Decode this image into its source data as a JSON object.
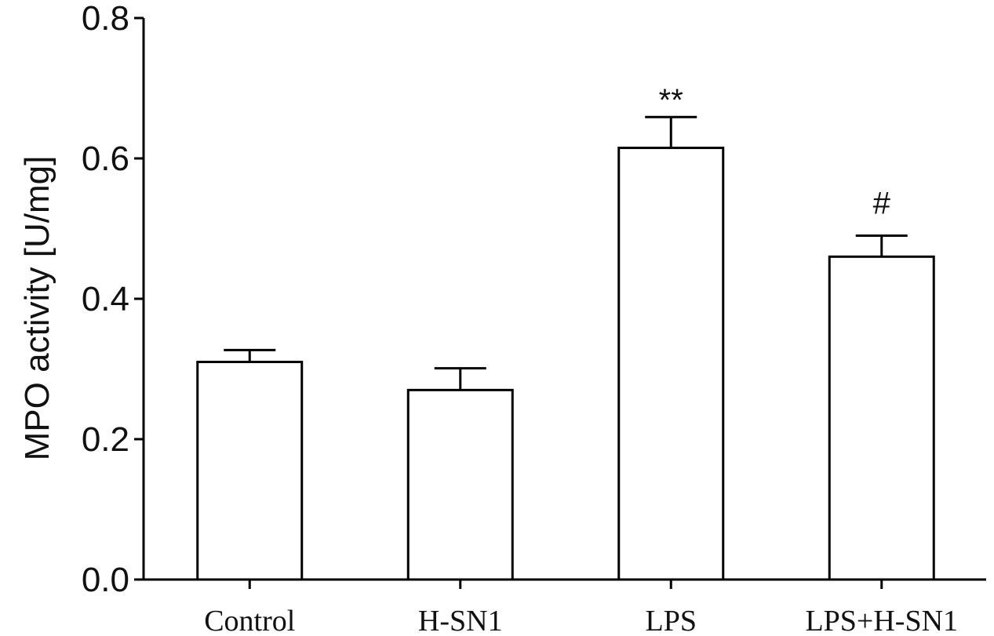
{
  "chart_data": {
    "type": "bar",
    "title": "",
    "xlabel": "",
    "ylabel": "MPO activity [U/mg]",
    "ylim": [
      0,
      0.8
    ],
    "yticks": [
      0.0,
      0.2,
      0.4,
      0.6,
      0.8
    ],
    "ytick_labels": [
      "0.0",
      "0.2",
      "0.4",
      "0.6",
      "0.8"
    ],
    "categories": [
      "Control",
      "H-SN1",
      "LPS",
      "LPS+H-SN1"
    ],
    "values": [
      0.31,
      0.27,
      0.615,
      0.46
    ],
    "error_upper": [
      0.017,
      0.031,
      0.044,
      0.03
    ],
    "annotations": [
      "",
      "",
      "**",
      "#"
    ],
    "bar_fill": "#ffffff",
    "bar_stroke": "#000000",
    "grid": false,
    "legend": "none"
  }
}
